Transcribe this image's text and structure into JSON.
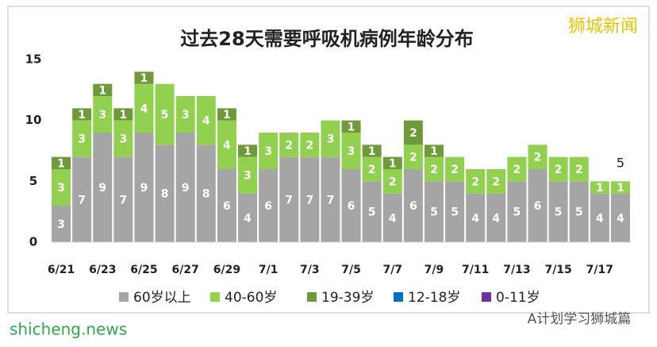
{
  "chart_data": {
    "type": "stacked-bar",
    "title": "过去28天需要呼吸机病例年龄分布",
    "categories": [
      "6/21",
      null,
      "6/23",
      null,
      "6/25",
      null,
      "6/27",
      null,
      "6/29",
      null,
      "7/1",
      null,
      "7/3",
      null,
      "7/5",
      null,
      "7/7",
      null,
      "7/9",
      null,
      "7/11",
      null,
      "7/13",
      null,
      "7/15",
      null,
      "7/17",
      null
    ],
    "series": [
      {
        "name": "60岁以上",
        "color": "#a5a5a5",
        "values": [
          3,
          7,
          9,
          7,
          9,
          8,
          9,
          8,
          6,
          4,
          6,
          7,
          7,
          7,
          6,
          5,
          4,
          6,
          5,
          5,
          4,
          4,
          5,
          6,
          5,
          5,
          4,
          4
        ]
      },
      {
        "name": "40-60岁",
        "color": "#92d050",
        "values": [
          3,
          3,
          3,
          3,
          4,
          5,
          3,
          4,
          4,
          3,
          3,
          2,
          2,
          3,
          3,
          2,
          2,
          2,
          2,
          2,
          2,
          2,
          2,
          2,
          2,
          2,
          1,
          1
        ]
      },
      {
        "name": "19-39岁",
        "color": "#6e9a3b",
        "values": [
          1,
          1,
          1,
          1,
          1,
          0,
          0,
          0,
          1,
          1,
          0,
          0,
          0,
          0,
          1,
          1,
          1,
          2,
          1,
          0,
          0,
          0,
          0,
          0,
          0,
          0,
          0,
          0
        ]
      },
      {
        "name": "12-18岁",
        "color": "#0070c0",
        "values": [
          0,
          0,
          0,
          0,
          0,
          0,
          0,
          0,
          0,
          0,
          0,
          0,
          0,
          0,
          0,
          0,
          0,
          0,
          0,
          0,
          0,
          0,
          0,
          0,
          0,
          0,
          0,
          0
        ]
      },
      {
        "name": "0-11岁",
        "color": "#7030a0",
        "values": [
          0,
          0,
          0,
          0,
          0,
          0,
          0,
          0,
          0,
          0,
          0,
          0,
          0,
          0,
          0,
          0,
          0,
          0,
          0,
          0,
          0,
          0,
          0,
          0,
          0,
          0,
          0,
          0
        ]
      }
    ],
    "ylim": [
      0,
      15
    ],
    "yticks": [
      0,
      5,
      10,
      15
    ],
    "grid": false,
    "legend": "bottom",
    "annotation": "5",
    "watermarks": [
      "狮城新闻",
      "shicheng.news",
      "A计划学习狮城篇"
    ]
  }
}
